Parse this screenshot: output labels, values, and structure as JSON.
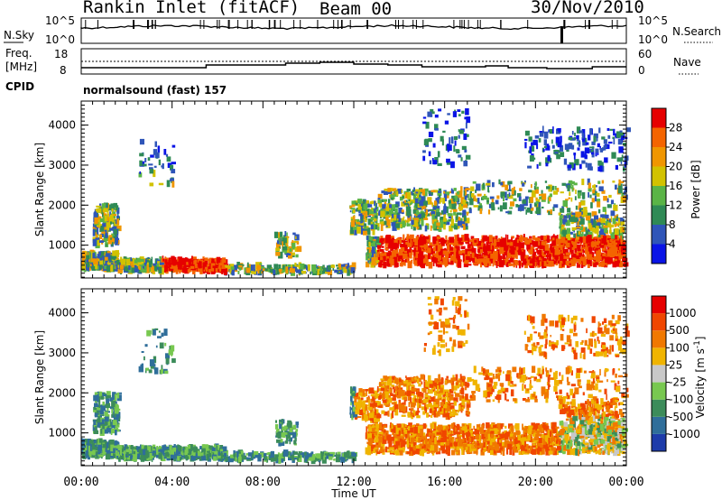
{
  "header": {
    "station": "Rankin Inlet (fitACF)",
    "beam": "Beam 00",
    "date": "30/Nov/2010"
  },
  "noise_panel": {
    "left_label": "N.Sky",
    "right_label": "N.Search",
    "left_ticks": [
      "10^5",
      "10^0"
    ],
    "right_ticks": [
      "10^5",
      "10^0"
    ]
  },
  "freq_panel": {
    "left_label_1": "Freq.",
    "left_label_2": "[MHz]",
    "left_ticks": [
      "18",
      "8"
    ],
    "right_label": "Nave",
    "right_ticks": [
      "60",
      "0"
    ]
  },
  "cpid": {
    "label": "CPID",
    "value": "normalsound (fast) 157"
  },
  "chart_data": [
    {
      "type": "heatmap",
      "parameter": "power",
      "ylabel": "Slant Range [km]",
      "ylim": [
        180,
        4600
      ],
      "yticks": [
        1000,
        2000,
        3000,
        4000
      ],
      "xlabel": "",
      "xlim_hours": [
        0,
        24
      ],
      "colorbar_label": "Power [dB]",
      "colorbar_ticks": [
        4,
        8,
        12,
        16,
        20,
        24,
        28
      ],
      "colorbar_colors": [
        "#0a14e6",
        "#2f55b8",
        "#2f8a55",
        "#5ab446",
        "#d2c200",
        "#f09600",
        "#f46400",
        "#e60000"
      ]
    },
    {
      "type": "heatmap",
      "parameter": "velocity",
      "ylabel": "Slant Range [km]",
      "ylim": [
        180,
        4600
      ],
      "yticks": [
        1000,
        2000,
        3000,
        4000
      ],
      "xlabel": "Time UT",
      "xlim_hours": [
        0,
        24
      ],
      "xticks": [
        "00:00",
        "04:00",
        "08:00",
        "12:00",
        "16:00",
        "20:00",
        "00:00"
      ],
      "colorbar_label": "Velocity [m s^-1]",
      "colorbar_ticks": [
        "1000",
        "500",
        "100",
        "25",
        "-25",
        "-100",
        "-500",
        "-1000"
      ],
      "colorbar_colors": [
        "#1e3caa",
        "#2f6e9a",
        "#3c8c5a",
        "#78c850",
        "#c8c8c8",
        "#f0b400",
        "#f07800",
        "#f04600",
        "#e60000"
      ]
    }
  ]
}
